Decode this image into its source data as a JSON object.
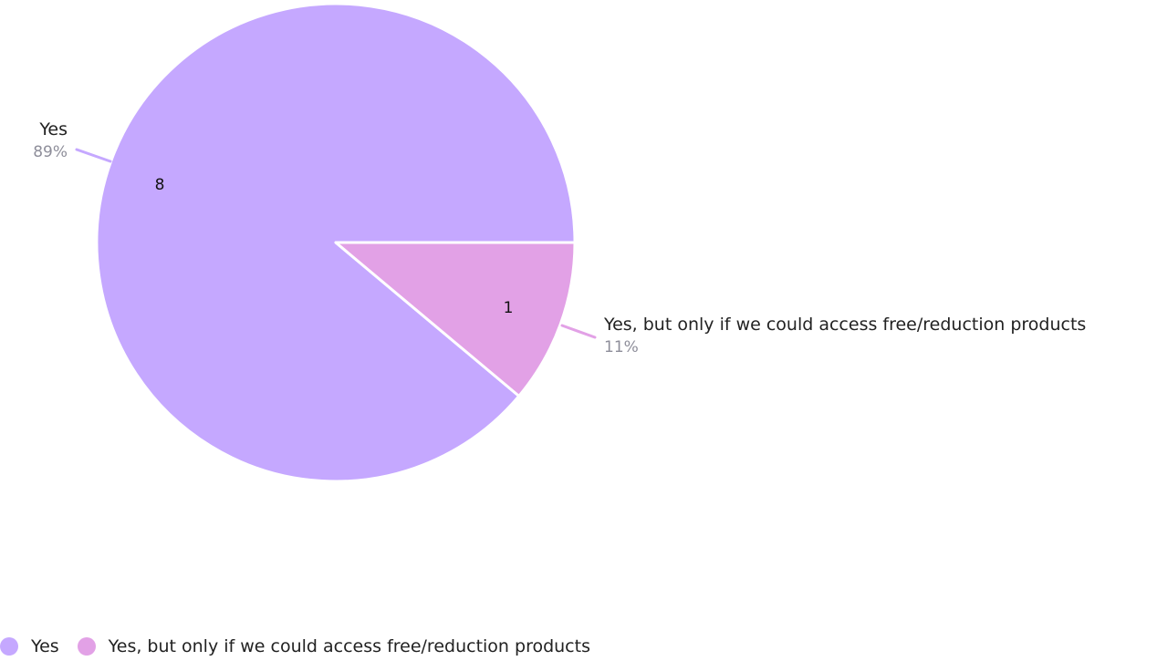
{
  "chart_data": {
    "type": "pie",
    "slices": [
      {
        "label": "Yes",
        "value": 8,
        "percent": "89%",
        "color": "#c5a8ff"
      },
      {
        "label": "Yes, but only if we could access free/reduction products",
        "value": 1,
        "percent": "11%",
        "color": "#e2a1e6"
      }
    ],
    "legend_position": "bottom-left"
  }
}
